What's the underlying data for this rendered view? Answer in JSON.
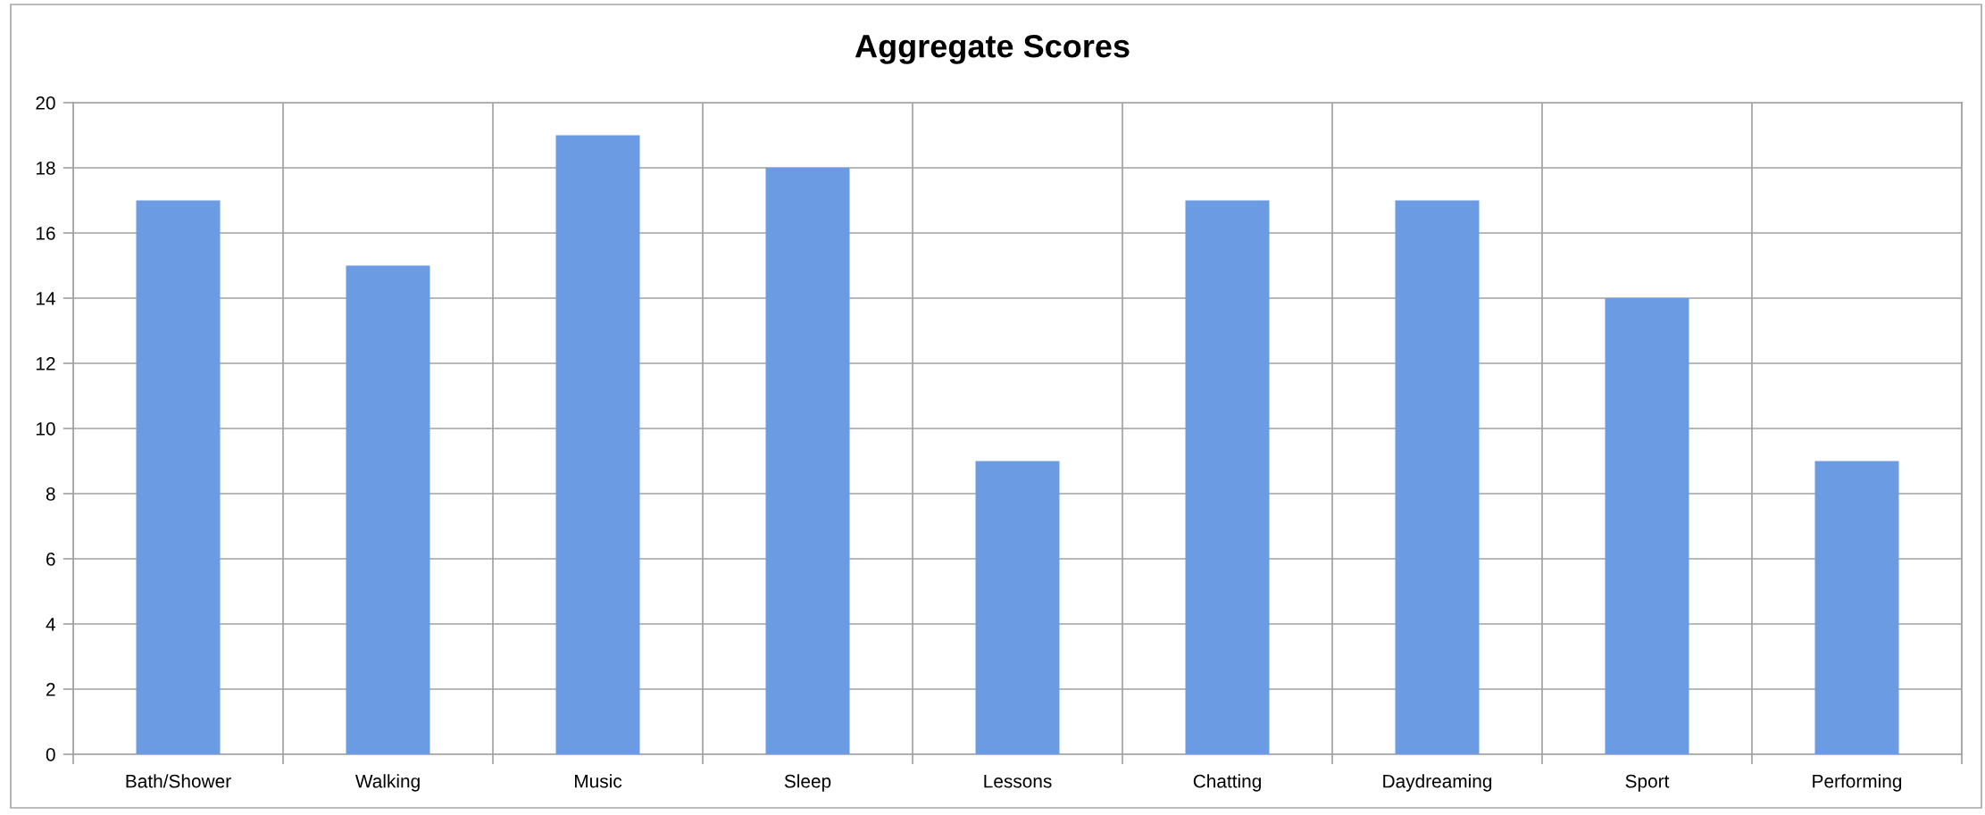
{
  "chart_data": {
    "type": "bar",
    "title": "Aggregate Scores",
    "categories": [
      "Bath/Shower",
      "Walking",
      "Music",
      "Sleep",
      "Lessons",
      "Chatting",
      "Daydreaming",
      "Sport",
      "Performing"
    ],
    "values": [
      17,
      15,
      19,
      18,
      9,
      17,
      17,
      14,
      9
    ],
    "color": "#6a9be3",
    "ylim": [
      0,
      20
    ],
    "yticks": [
      0,
      2,
      4,
      6,
      8,
      10,
      12,
      14,
      16,
      18,
      20
    ],
    "grid": true
  }
}
